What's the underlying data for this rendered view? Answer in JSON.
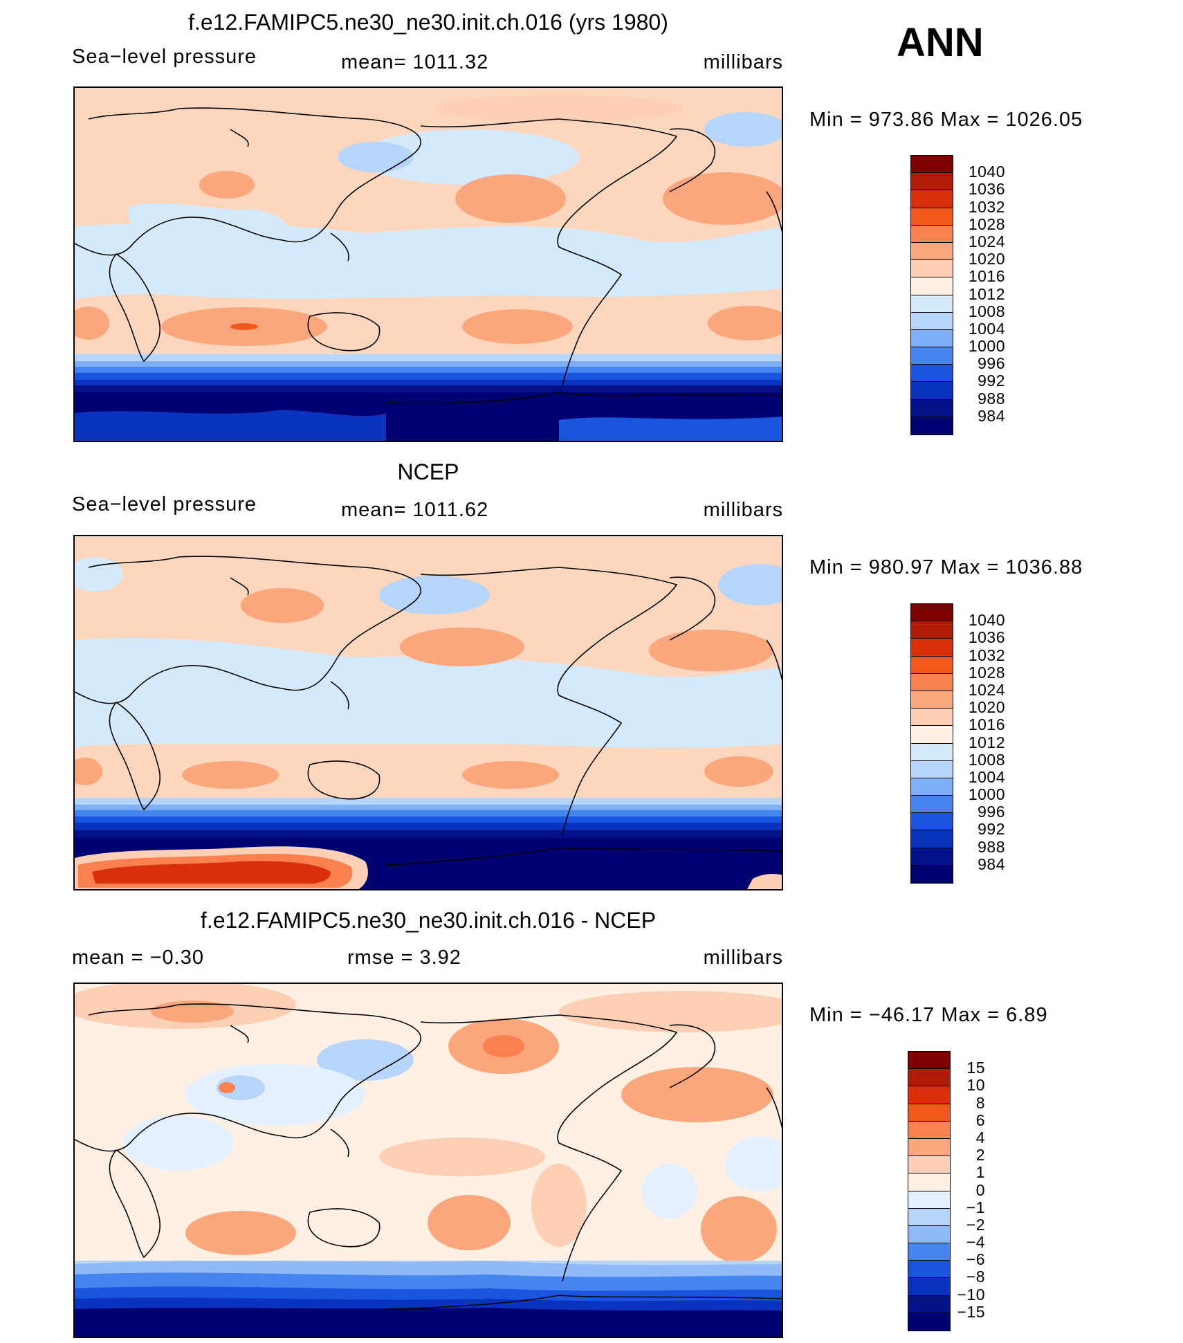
{
  "season": "ANN",
  "panels": [
    {
      "id": "model",
      "title": "f.e12.FAMIPC5.ne30_ne30.init.ch.016 (yrs 1980)",
      "left_label": "Sea−level pressure",
      "center_label": "mean=  1011.32",
      "units": "millibars",
      "min_max": "Min  =  973.86  Max  =  1026.05",
      "colorbar": {
        "labels": [
          "1040",
          "1036",
          "1032",
          "1028",
          "1024",
          "1020",
          "1016",
          "1012",
          "1008",
          "1004",
          "1000",
          "996",
          "992",
          "988",
          "984"
        ],
        "colors": [
          "#7f0000",
          "#b01c05",
          "#d9300b",
          "#f2571b",
          "#fa8050",
          "#fca67d",
          "#fdcfb4",
          "#fff0e3",
          "#d5e9fc",
          "#b7d5fb",
          "#7fb0f7",
          "#4585f0",
          "#1a55e0",
          "#0a33bf",
          "#041188",
          "#000070"
        ]
      }
    },
    {
      "id": "obs",
      "title": "NCEP",
      "left_label": "Sea−level pressure",
      "center_label": "mean=  1011.62",
      "units": "millibars",
      "min_max": "Min  =  980.97  Max  =  1036.88",
      "colorbar": {
        "labels": [
          "1040",
          "1036",
          "1032",
          "1028",
          "1024",
          "1020",
          "1016",
          "1012",
          "1008",
          "1004",
          "1000",
          "996",
          "992",
          "988",
          "984"
        ],
        "colors": [
          "#7f0000",
          "#b01c05",
          "#d9300b",
          "#f2571b",
          "#fa8050",
          "#fca67d",
          "#fdcfb4",
          "#fff0e3",
          "#d5e9fc",
          "#b7d5fb",
          "#7fb0f7",
          "#4585f0",
          "#1a55e0",
          "#0a33bf",
          "#041188",
          "#000070"
        ]
      }
    },
    {
      "id": "diff",
      "title": "f.e12.FAMIPC5.ne30_ne30.init.ch.016 - NCEP",
      "left_label": "mean  =    −0.30",
      "center_label": "rmse  =     3.92",
      "units": "millibars",
      "min_max": "Min  =  −46.17  Max  =      6.89",
      "colorbar": {
        "labels": [
          "15",
          "10",
          "8",
          "6",
          "4",
          "2",
          "1",
          "0",
          "−1",
          "−2",
          "−4",
          "−6",
          "−8",
          "−10",
          "−15"
        ],
        "colors": [
          "#7f0000",
          "#b01c05",
          "#d9300b",
          "#f2571b",
          "#fa8050",
          "#fca67d",
          "#fdcfb4",
          "#fff0e3",
          "#e4f0fd",
          "#b7d5fb",
          "#8fb9f8",
          "#4585f0",
          "#1a55e0",
          "#0a33bf",
          "#041188",
          "#000070"
        ]
      }
    }
  ]
}
